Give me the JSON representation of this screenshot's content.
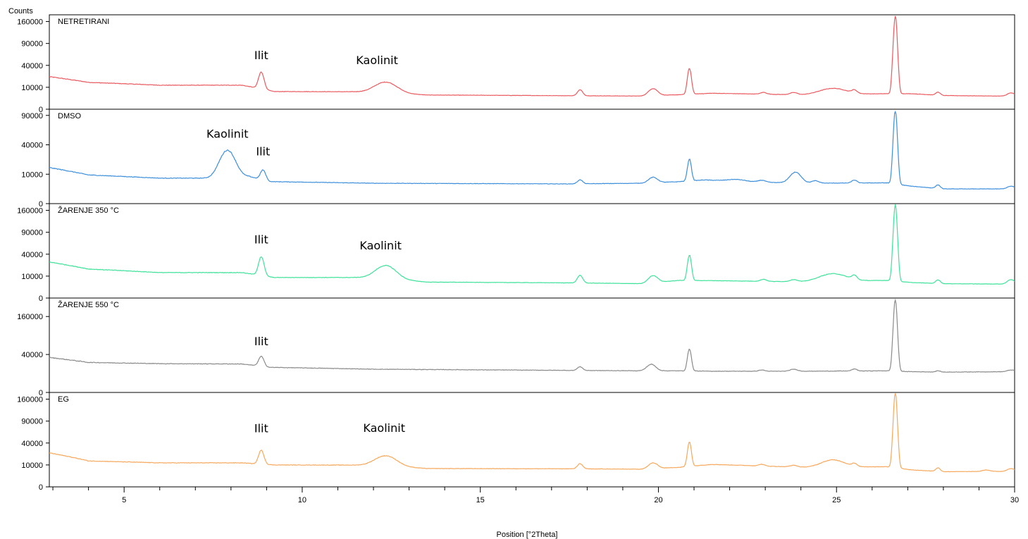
{
  "chart_data": {
    "type": "line",
    "y_axis_label": "Counts",
    "x_axis_label": "Position [°2Theta]",
    "x_range": [
      2.9,
      30
    ],
    "x_ticks": [
      5,
      10,
      15,
      20,
      25,
      30
    ],
    "y_scale": "sqrt",
    "panels": [
      {
        "name": "NETRETIRANI",
        "color": "#ea5a5f",
        "y_max": 180000,
        "y_ticks": [
          0,
          10000,
          40000,
          90000,
          160000
        ],
        "annotations": [
          {
            "text": "Ilit",
            "x": 8.85,
            "y": 52000
          },
          {
            "text": "Kaolinit",
            "x": 12.1,
            "y": 42000
          }
        ],
        "baseline": [
          [
            2.9,
            22000
          ],
          [
            4,
            15000
          ],
          [
            6,
            12000
          ],
          [
            8.3,
            12000
          ],
          [
            9.2,
            6500
          ],
          [
            12,
            6300
          ],
          [
            13.5,
            4200
          ],
          [
            17.5,
            3800
          ],
          [
            19.5,
            3600
          ],
          [
            20.6,
            4400
          ],
          [
            21.5,
            5300
          ],
          [
            24,
            4300
          ],
          [
            26.4,
            5000
          ],
          [
            27.1,
            5000
          ],
          [
            28,
            3900
          ],
          [
            30,
            3500
          ]
        ],
        "peaks": [
          [
            8.85,
            20000,
            0.07
          ],
          [
            12.35,
            9500,
            0.28
          ],
          [
            17.8,
            4000,
            0.07
          ],
          [
            19.85,
            5000,
            0.12
          ],
          [
            20.87,
            30000,
            0.05
          ],
          [
            22.95,
            1200,
            0.08
          ],
          [
            23.8,
            1400,
            0.1
          ],
          [
            24.9,
            4500,
            0.35
          ],
          [
            25.5,
            2200,
            0.07
          ],
          [
            26.65,
            175000,
            0.05
          ],
          [
            27.85,
            2000,
            0.06
          ],
          [
            29.9,
            2000,
            0.1
          ]
        ]
      },
      {
        "name": "DMSO",
        "color": "#3d8fdc",
        "y_max": 100000,
        "y_ticks": [
          0,
          10000,
          40000,
          90000
        ],
        "annotations": [
          {
            "text": "Kaolinit",
            "x": 7.9,
            "y": 50000
          },
          {
            "text": "Ilit",
            "x": 8.9,
            "y": 27000
          }
        ],
        "baseline": [
          [
            2.9,
            15000
          ],
          [
            4,
            9500
          ],
          [
            6,
            7500
          ],
          [
            7.3,
            7500
          ],
          [
            8.5,
            8500
          ],
          [
            9.1,
            5600
          ],
          [
            12,
            4800
          ],
          [
            17.5,
            4500
          ],
          [
            19.5,
            4800
          ],
          [
            20.5,
            5500
          ],
          [
            21.3,
            6500
          ],
          [
            22.5,
            5500
          ],
          [
            24,
            4800
          ],
          [
            26.4,
            5000
          ],
          [
            27.1,
            3500
          ],
          [
            28,
            2500
          ],
          [
            30,
            2500
          ]
        ],
        "peaks": [
          [
            7.9,
            25000,
            0.2
          ],
          [
            8.9,
            6500,
            0.07
          ],
          [
            17.8,
            2000,
            0.07
          ],
          [
            19.85,
            3000,
            0.12
          ],
          [
            20.87,
            17000,
            0.05
          ],
          [
            22.2,
            1000,
            0.25
          ],
          [
            22.9,
            1000,
            0.1
          ],
          [
            23.85,
            6500,
            0.15
          ],
          [
            24.4,
            1200,
            0.1
          ],
          [
            25.5,
            1500,
            0.07
          ],
          [
            26.65,
            95000,
            0.05
          ],
          [
            27.85,
            1400,
            0.06
          ],
          [
            29.9,
            1000,
            0.1
          ]
        ]
      },
      {
        "name": "ŽARENJE 350 °C",
        "color": "#3ee29a",
        "y_max": 180000,
        "y_ticks": [
          0,
          10000,
          40000,
          90000,
          160000
        ],
        "annotations": [
          {
            "text": "Ilit",
            "x": 8.85,
            "y": 62000
          },
          {
            "text": "Kaolinit",
            "x": 12.2,
            "y": 49000
          }
        ],
        "baseline": [
          [
            2.9,
            27000
          ],
          [
            4,
            17500
          ],
          [
            6,
            13500
          ],
          [
            8.3,
            13500
          ],
          [
            9.2,
            8800
          ],
          [
            12,
            8800
          ],
          [
            13.5,
            5300
          ],
          [
            17.5,
            4800
          ],
          [
            19.5,
            4300
          ],
          [
            20.6,
            6500
          ],
          [
            21.5,
            6300
          ],
          [
            24,
            5500
          ],
          [
            26.4,
            6500
          ],
          [
            27.1,
            5000
          ],
          [
            28,
            4300
          ],
          [
            30,
            4000
          ]
        ],
        "peaks": [
          [
            8.85,
            25000,
            0.07
          ],
          [
            12.35,
            14000,
            0.26
          ],
          [
            17.8,
            6000,
            0.07
          ],
          [
            19.85,
            5500,
            0.12
          ],
          [
            20.87,
            32000,
            0.05
          ],
          [
            22.95,
            1500,
            0.08
          ],
          [
            23.8,
            1500,
            0.1
          ],
          [
            24.9,
            6500,
            0.35
          ],
          [
            25.5,
            3500,
            0.07
          ],
          [
            26.65,
            175000,
            0.05
          ],
          [
            27.85,
            2500,
            0.06
          ],
          [
            29.9,
            3000,
            0.1
          ]
        ]
      },
      {
        "name": "ŽARENJE 550 °C",
        "color": "#8a8a8a",
        "y_max": 240000,
        "y_ticks": [
          0,
          40000,
          160000
        ],
        "annotations": [
          {
            "text": "Ilit",
            "x": 8.85,
            "y": 62000
          }
        ],
        "baseline": [
          [
            2.9,
            34000
          ],
          [
            4,
            25000
          ],
          [
            6,
            23000
          ],
          [
            8.3,
            22500
          ],
          [
            9.1,
            17500
          ],
          [
            12,
            15000
          ],
          [
            17.5,
            13500
          ],
          [
            19.5,
            13000
          ],
          [
            20.5,
            13000
          ],
          [
            21.5,
            12500
          ],
          [
            24,
            12500
          ],
          [
            26.4,
            13000
          ],
          [
            27.1,
            12000
          ],
          [
            28,
            11500
          ],
          [
            30,
            12000
          ]
        ],
        "peaks": [
          [
            8.85,
            17000,
            0.07
          ],
          [
            17.8,
            5000,
            0.07
          ],
          [
            19.8,
            9000,
            0.12
          ],
          [
            20.87,
            40000,
            0.05
          ],
          [
            22.9,
            1500,
            0.08
          ],
          [
            23.8,
            2500,
            0.1
          ],
          [
            25.5,
            2500,
            0.07
          ],
          [
            26.65,
            225000,
            0.05
          ],
          [
            27.85,
            1500,
            0.06
          ],
          [
            29.9,
            2000,
            0.1
          ]
        ]
      },
      {
        "name": "EG",
        "color": "#f7a85c",
        "y_max": 180000,
        "y_ticks": [
          0,
          10000,
          40000,
          90000,
          160000
        ],
        "annotations": [
          {
            "text": "Ilit",
            "x": 8.85,
            "y": 62000
          },
          {
            "text": "Kaolinit",
            "x": 12.3,
            "y": 63000
          }
        ],
        "baseline": [
          [
            2.9,
            24000
          ],
          [
            4,
            14000
          ],
          [
            6,
            12000
          ],
          [
            8.3,
            12000
          ],
          [
            9.2,
            10000
          ],
          [
            12,
            9800
          ],
          [
            13.5,
            7000
          ],
          [
            17.5,
            6800
          ],
          [
            19.5,
            6500
          ],
          [
            20.6,
            8000
          ],
          [
            21.5,
            10500
          ],
          [
            24,
            8000
          ],
          [
            26.4,
            8500
          ],
          [
            27.1,
            6000
          ],
          [
            28,
            4800
          ],
          [
            30,
            5000
          ]
        ],
        "peaks": [
          [
            8.85,
            17000,
            0.07
          ],
          [
            12.35,
            11000,
            0.28
          ],
          [
            17.8,
            4500,
            0.07
          ],
          [
            19.85,
            5000,
            0.12
          ],
          [
            20.87,
            33000,
            0.05
          ],
          [
            22.9,
            1500,
            0.08
          ],
          [
            23.8,
            1500,
            0.1
          ],
          [
            24.9,
            7000,
            0.3
          ],
          [
            25.5,
            2500,
            0.07
          ],
          [
            26.65,
            175000,
            0.05
          ],
          [
            27.85,
            2500,
            0.06
          ],
          [
            29.2,
            1000,
            0.1
          ],
          [
            29.9,
            2000,
            0.1
          ]
        ]
      }
    ]
  }
}
